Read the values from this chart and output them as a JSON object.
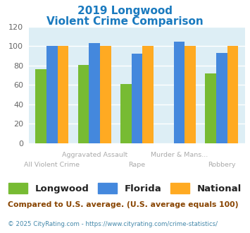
{
  "title_line1": "2019 Longwood",
  "title_line2": "Violent Crime Comparison",
  "title_color": "#1a7abf",
  "categories": [
    "All Violent Crime",
    "Aggravated Assault",
    "Rape",
    "Murder & Mans...",
    "Robbery"
  ],
  "cat_labels_top": [
    "",
    "Aggravated Assault",
    "",
    "Murder & Mans...",
    ""
  ],
  "cat_labels_bot": [
    "All Violent Crime",
    "",
    "Rape",
    "",
    "Robbery"
  ],
  "longwood": [
    76,
    81,
    61,
    0,
    72
  ],
  "florida": [
    100,
    103,
    92,
    105,
    93
  ],
  "national": [
    100,
    100,
    100,
    100,
    100
  ],
  "longwood_color": "#77bb33",
  "florida_color": "#4488dd",
  "national_color": "#ffaa22",
  "bg_color": "#ddeef5",
  "ylim": [
    0,
    120
  ],
  "yticks": [
    0,
    20,
    40,
    60,
    80,
    100,
    120
  ],
  "legend_labels": [
    "Longwood",
    "Florida",
    "National"
  ],
  "footnote1": "Compared to U.S. average. (U.S. average equals 100)",
  "footnote2": "© 2025 CityRating.com - https://www.cityrating.com/crime-statistics/",
  "footnote1_color": "#884400",
  "footnote2_color": "#4488aa",
  "label_color": "#aaaaaa"
}
